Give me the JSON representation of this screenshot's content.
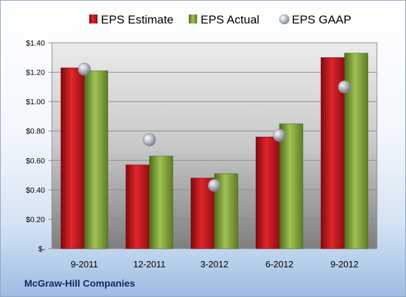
{
  "company": "McGraw-Hill Companies",
  "chart_data": {
    "type": "bar",
    "categories": [
      "9-2011",
      "12-2011",
      "3-2012",
      "6-2012",
      "9-2012"
    ],
    "series": [
      {
        "name": "EPS Estimate",
        "kind": "bar",
        "color": "#c0161c",
        "values": [
          1.23,
          0.57,
          0.48,
          0.76,
          1.3
        ]
      },
      {
        "name": "EPS Actual",
        "kind": "bar",
        "color": "#86a83e",
        "values": [
          1.21,
          0.63,
          0.51,
          0.85,
          1.33
        ]
      },
      {
        "name": "EPS GAAP",
        "kind": "marker",
        "color": "#b0b4bc",
        "values": [
          1.22,
          0.74,
          0.43,
          0.77,
          1.1
        ]
      }
    ],
    "ylim": [
      0,
      1.4
    ],
    "yticks": [
      0,
      0.2,
      0.4,
      0.6,
      0.8,
      1.0,
      1.2,
      1.4
    ],
    "ytick_labels": [
      "$-",
      "$0.20",
      "$0.40",
      "$0.60",
      "$0.80",
      "$1.00",
      "$1.20",
      "$1.40"
    ],
    "grid": true,
    "legend_position": "top"
  }
}
